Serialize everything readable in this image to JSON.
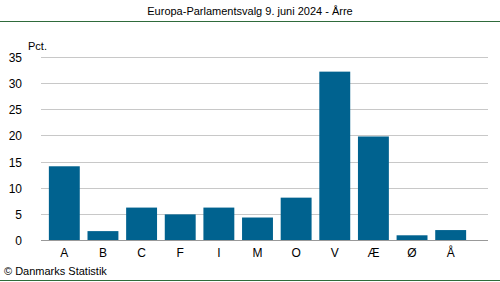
{
  "chart_data": {
    "type": "bar",
    "title": "Europa-Parlamentsvalg 9. juni 2024 - Årre",
    "y_label": "Pct.",
    "categories": [
      "A",
      "B",
      "C",
      "F",
      "I",
      "M",
      "O",
      "V",
      "Æ",
      "Ø",
      "Å"
    ],
    "values": [
      14.1,
      1.7,
      6.2,
      4.9,
      6.2,
      4.3,
      8.1,
      32.2,
      19.8,
      0.9,
      1.9
    ],
    "color": "#00628f",
    "ylim": [
      0,
      35
    ],
    "yticks": [
      0,
      5,
      10,
      15,
      20,
      25,
      30,
      35
    ],
    "grid": true,
    "source": "© Danmarks Statistik"
  }
}
